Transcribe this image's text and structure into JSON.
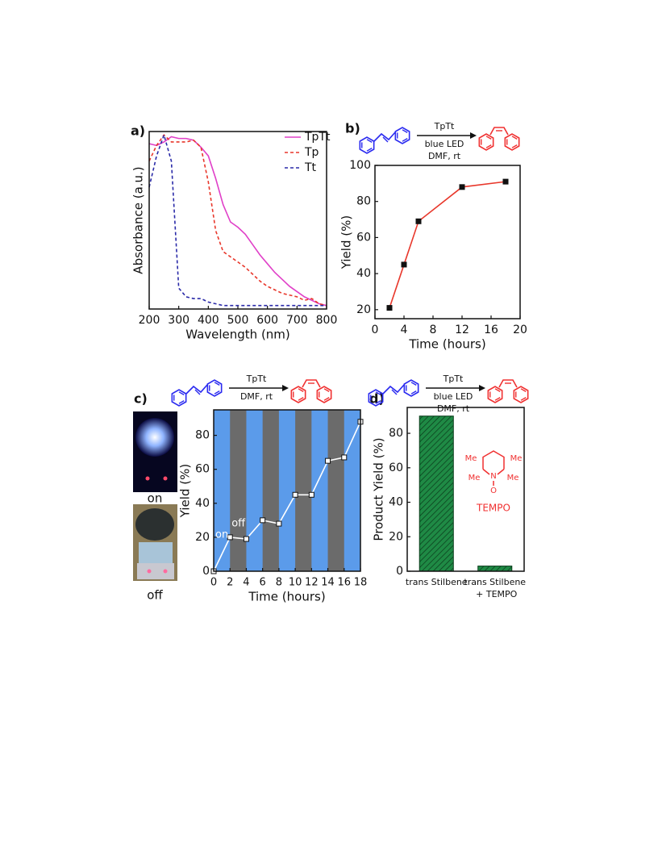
{
  "chart_data": [
    {
      "type": "line",
      "panel_label": "a)",
      "xlabel": "Wavelength (nm)",
      "ylabel": "Absorbance (a.u.)",
      "legend": "upper right",
      "x": [
        200,
        225,
        250,
        275,
        300,
        325,
        350,
        375,
        400,
        425,
        450,
        475,
        500,
        525,
        550,
        575,
        600,
        625,
        650,
        675,
        700,
        725,
        750,
        775,
        800
      ],
      "xlim": [
        200,
        800
      ],
      "xticks": [
        200,
        300,
        400,
        500,
        600,
        700,
        800
      ],
      "ylim": [
        0,
        1.02
      ],
      "series": [
        {
          "name": "TpTt",
          "color": "#e040c8",
          "linestyle": "solid",
          "values": [
            0.95,
            0.94,
            0.96,
            0.99,
            0.98,
            0.98,
            0.97,
            0.93,
            0.88,
            0.75,
            0.6,
            0.5,
            0.47,
            0.43,
            0.37,
            0.31,
            0.26,
            0.21,
            0.17,
            0.13,
            0.1,
            0.07,
            0.05,
            0.03,
            0.02
          ]
        },
        {
          "name": "Tp",
          "color": "#e8372b",
          "linestyle": "dashed",
          "values": [
            0.85,
            0.94,
            1.0,
            0.96,
            0.96,
            0.96,
            0.97,
            0.93,
            0.73,
            0.45,
            0.33,
            0.3,
            0.27,
            0.24,
            0.2,
            0.16,
            0.13,
            0.11,
            0.09,
            0.08,
            0.07,
            0.05,
            0.06,
            0.03,
            0.02
          ]
        },
        {
          "name": "Tt",
          "color": "#2a2aa8",
          "linestyle": "dashed",
          "values": [
            0.7,
            0.88,
            1.0,
            0.85,
            0.12,
            0.07,
            0.06,
            0.06,
            0.04,
            0.03,
            0.02,
            0.02,
            0.02,
            0.02,
            0.02,
            0.02,
            0.02,
            0.02,
            0.02,
            0.02,
            0.02,
            0.02,
            0.02,
            0.02,
            0.02
          ]
        }
      ]
    },
    {
      "type": "line",
      "panel_label": "b)",
      "xlabel": "Time (hours)",
      "ylabel": "Yield (%)",
      "reaction": {
        "catalyst": "TpTt",
        "conditions": [
          "blue LED",
          "DMF, rt"
        ]
      },
      "x": [
        2,
        4,
        6,
        12,
        18
      ],
      "xlim": [
        0,
        20
      ],
      "xticks": [
        0,
        4,
        8,
        12,
        16,
        20
      ],
      "ylim": [
        15,
        100
      ],
      "yticks": [
        20,
        40,
        60,
        80,
        100
      ],
      "series": [
        {
          "color": "#e8372b",
          "marker_color": "#111111",
          "values": [
            21,
            45,
            69,
            88,
            91
          ]
        }
      ]
    },
    {
      "type": "line",
      "panel_label": "c)",
      "xlabel": "Time (hours)",
      "ylabel": "Yield (%)",
      "reaction": {
        "catalyst": "TpTt",
        "conditions": [
          "DMF, rt"
        ]
      },
      "photo_labels": [
        "on",
        "off"
      ],
      "annotations": [
        "on",
        "off"
      ],
      "background_color": "#5b9bea",
      "off_color": "#6b6b6b",
      "off_intervals": [
        [
          2,
          4
        ],
        [
          6,
          8
        ],
        [
          10,
          12
        ],
        [
          14,
          16
        ]
      ],
      "x": [
        0,
        2,
        4,
        6,
        8,
        10,
        12,
        14,
        16,
        18
      ],
      "xlim": [
        0,
        18
      ],
      "xticks": [
        0,
        2,
        4,
        6,
        8,
        10,
        12,
        14,
        16,
        18
      ],
      "ylim": [
        0,
        95
      ],
      "yticks": [
        0,
        20,
        40,
        60,
        80
      ],
      "series": [
        {
          "color": "#ffffff",
          "marker_color": "#ffffff",
          "values": [
            0,
            20,
            19,
            30,
            28,
            45,
            45,
            65,
            67,
            88
          ]
        }
      ]
    },
    {
      "type": "bar",
      "panel_label": "d)",
      "ylabel": "Product Yield (%)",
      "reaction": {
        "catalyst": "TpTt",
        "conditions": [
          "blue LED",
          "DMF, rt"
        ]
      },
      "structure_labels": [
        "Me",
        "Me",
        "Me",
        "Me",
        "N",
        "O"
      ],
      "structure_name": "TEMPO",
      "categories": [
        [
          "trans Stilbene"
        ],
        [
          "trans Stilbene",
          "+ TEMPO"
        ]
      ],
      "values": [
        90,
        3
      ],
      "color": "#1f8a45",
      "hatch": true,
      "ylim": [
        0,
        95
      ],
      "yticks": [
        0,
        20,
        40,
        60,
        80
      ]
    }
  ]
}
